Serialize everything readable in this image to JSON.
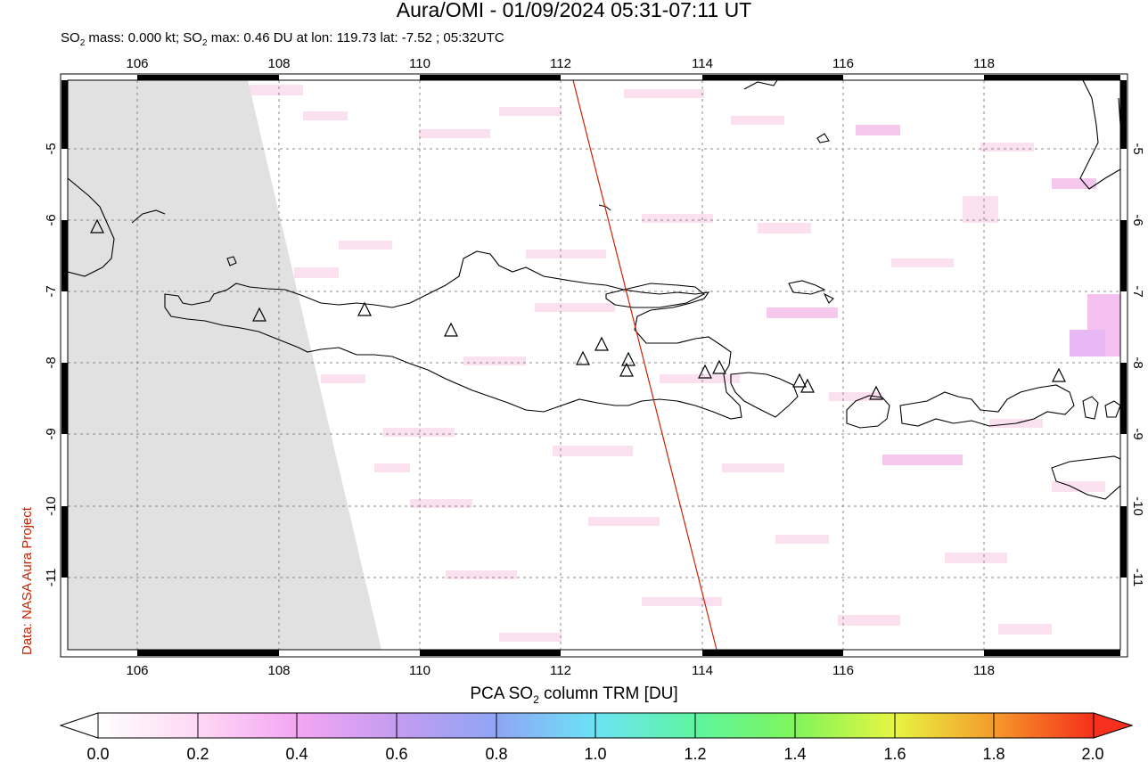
{
  "header": {
    "title": "Aura/OMI - 01/09/2024 05:31-07:11 UT",
    "subtitle_pre": "SO",
    "subtitle_sub": "2",
    "subtitle_mid": " mass: 0.000 kt; SO",
    "subtitle_sub2": "2",
    "subtitle_post": " max: 0.46 DU at lon: 119.73 lat: -7.52 ; 05:32UTC"
  },
  "credit": "Data: NASA Aura Project",
  "map": {
    "lon_ticks": [
      "106",
      "108",
      "110",
      "112",
      "114",
      "116",
      "118"
    ],
    "lat_ticks": [
      "-5",
      "-6",
      "-7",
      "-8",
      "-9",
      "-10",
      "-11"
    ],
    "lon_range": [
      104.9,
      120.0
    ],
    "lat_range": [
      -12.2,
      -4.0
    ],
    "no_data_color": "#e1e1e1",
    "orbit_track_color": "#cc2200",
    "volcano_marker": "triangle-icon"
  },
  "colorbar": {
    "title_pre": "PCA SO",
    "title_sub": "2",
    "title_post": " column TRM [DU]",
    "tick_labels": [
      "0.0",
      "0.2",
      "0.4",
      "0.6",
      "0.8",
      "1.0",
      "1.2",
      "1.4",
      "1.6",
      "1.8",
      "2.0"
    ],
    "range": [
      0.0,
      2.0
    ],
    "colors": [
      "#ffffff",
      "#ffd8f4",
      "#f3a6f3",
      "#c49cf0",
      "#8fa5f5",
      "#6ce3f5",
      "#5ef5a0",
      "#7ff55a",
      "#e7f542",
      "#f59a2a",
      "#f5301c"
    ]
  }
}
